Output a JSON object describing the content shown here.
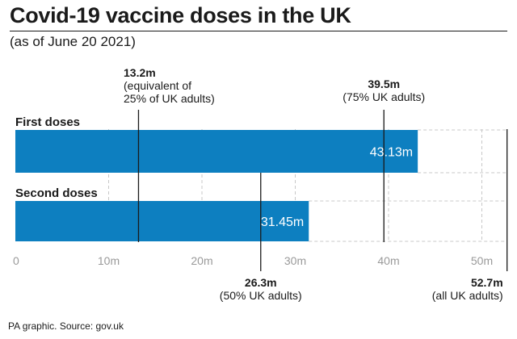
{
  "title": "Covid-19 vaccine doses in the UK",
  "subtitle": "(as of June 20 2021)",
  "source": "PA graphic. Source: gov.uk",
  "colors": {
    "bar": "#0d7fc0",
    "grid": "#c8c8c8",
    "text": "#1a1a1a"
  },
  "chart_data": {
    "type": "bar",
    "orientation": "horizontal",
    "categories": [
      "First doses",
      "Second doses"
    ],
    "values": [
      43.13,
      31.45
    ],
    "value_labels": [
      "43.13m",
      "31.45m"
    ],
    "xlim": [
      0,
      52.7
    ],
    "xticks": [
      0,
      10,
      20,
      30,
      40,
      50
    ],
    "xtick_labels": [
      "0",
      "10m",
      "20m",
      "30m",
      "40m",
      "50m"
    ],
    "grid": true,
    "annotations": [
      {
        "value": 13.2,
        "text": [
          "13.2m",
          "(equivalent of",
          "25% of UK adults)"
        ],
        "position": "top"
      },
      {
        "value": 39.5,
        "text": [
          "39.5m",
          "(75% UK adults)"
        ],
        "position": "top"
      },
      {
        "value": 26.3,
        "text": [
          "26.3m",
          "(50% UK adults)"
        ],
        "position": "bottom"
      },
      {
        "value": 52.7,
        "text": [
          "52.7m",
          "(all UK adults)"
        ],
        "position": "bottom"
      }
    ]
  }
}
